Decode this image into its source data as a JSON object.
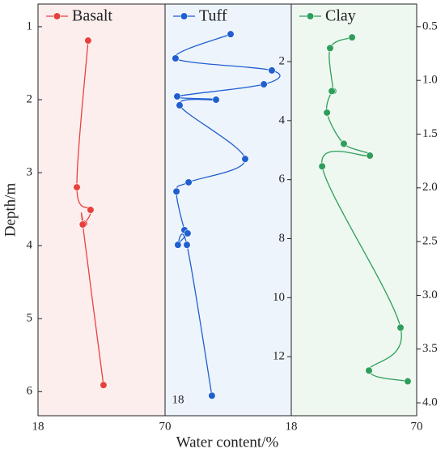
{
  "chart_data": [
    {
      "type": "line",
      "ylabel": "Depth/m",
      "xlim": [
        18,
        70
      ],
      "xticks": [
        18,
        70
      ],
      "ylim": [
        0.69,
        6.33
      ],
      "yticks": [
        1,
        2,
        3,
        4,
        5,
        6
      ],
      "invert_y": true,
      "series": [
        {
          "name": "Basalt",
          "color": "#e8413c",
          "x": [
            38.5,
            33.9,
            39.5,
            36.9,
            36.3,
            44.8
          ],
          "y": [
            1.19,
            3.2,
            3.51,
            3.7,
            3.71,
            5.91
          ]
        }
      ]
    },
    {
      "type": "line",
      "xlabel": "Water content/%",
      "xlim": [
        18,
        70
      ],
      "xticks": [
        18,
        70
      ],
      "ylim": [
        0.05,
        14.0
      ],
      "yticks": [
        2,
        4,
        6,
        8,
        10,
        12
      ],
      "invert_y": true,
      "series": [
        {
          "name": "Tuff",
          "color": "#1f5fd0",
          "x": [
            45.0,
            22.3,
            62.0,
            58.7,
            23.0,
            39.0,
            24.0,
            51.0,
            27.7,
            22.7,
            26.0,
            27.3,
            23.3,
            27.0,
            37.3
          ],
          "y": [
            1.07,
            1.89,
            2.3,
            2.77,
            3.18,
            3.29,
            3.48,
            5.3,
            6.09,
            6.4,
            7.71,
            7.82,
            8.21,
            8.21,
            13.32
          ]
        }
      ]
    },
    {
      "type": "line",
      "xlim": [
        18,
        70
      ],
      "xticks": [
        18,
        70
      ],
      "ylim": [
        0.29,
        4.12
      ],
      "yticks": [
        0.5,
        {
          "value": 1,
          "label": "1.0"
        },
        1.5,
        {
          "value": 2,
          "label": "2.0"
        },
        2.5,
        {
          "value": 3,
          "label": "3.0"
        },
        3.5,
        {
          "value": 4,
          "label": "4.0"
        }
      ],
      "invert_y": true,
      "series": [
        {
          "name": "Clay",
          "color": "#2e9e5b",
          "x": [
            43.2,
            34.1,
            35.4,
            34.8,
            32.8,
            39.8,
            50.6,
            30.8,
            63.3,
            50.2,
            66.3
          ],
          "y": [
            0.6,
            0.7,
            1.1,
            1.1,
            1.3,
            1.59,
            1.7,
            1.8,
            3.3,
            3.7,
            3.8
          ]
        }
      ]
    }
  ]
}
